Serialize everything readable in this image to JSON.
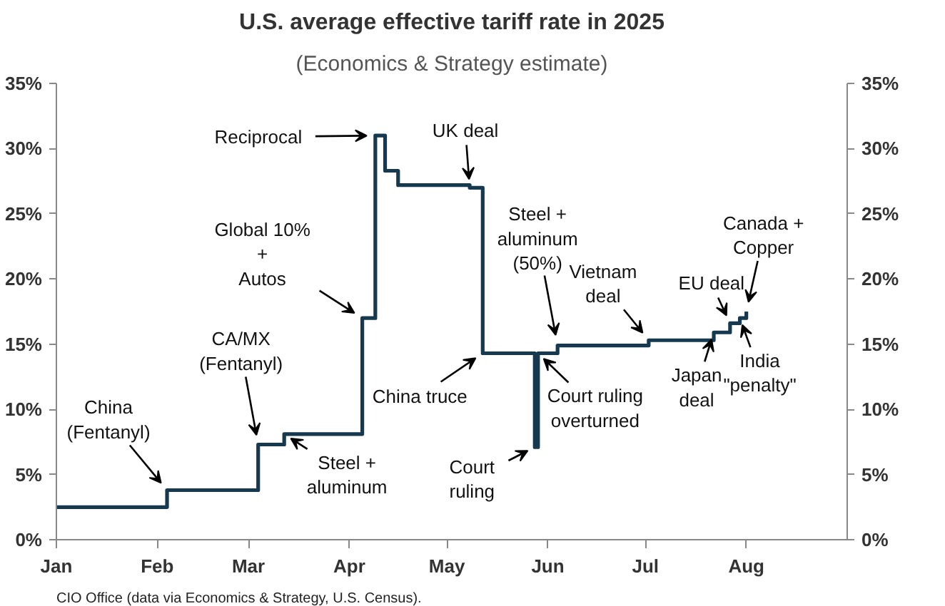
{
  "chart_data": {
    "type": "step",
    "title": "U.S. average effective tariff rate in 2025",
    "subtitle": "(Economics & Strategy estimate)",
    "x": [
      "2025-01-01",
      "2025-02-04",
      "2025-03-04",
      "2025-03-12",
      "2025-04-05",
      "2025-04-09",
      "2025-04-12",
      "2025-04-16",
      "2025-05-08",
      "2025-05-12",
      "2025-05-28",
      "2025-05-29",
      "2025-06-04",
      "2025-07-02",
      "2025-07-22",
      "2025-07-27",
      "2025-07-30",
      "2025-08-01"
    ],
    "series": [
      {
        "color": "#17394f",
        "values": [
          2.5,
          3.8,
          7.3,
          8.1,
          17.0,
          31.0,
          28.3,
          27.2,
          27.0,
          14.3,
          7.1,
          14.3,
          14.9,
          15.3,
          15.9,
          16.6,
          17.0,
          17.5
        ]
      }
    ],
    "xlim": [
      "2025-01-01",
      "2025-09-01"
    ],
    "xticks": [
      {
        "value": "2025-01-01",
        "label": "Jan"
      },
      {
        "value": "2025-02-01",
        "label": "Feb"
      },
      {
        "value": "2025-03-01",
        "label": "Mar"
      },
      {
        "value": "2025-04-01",
        "label": "Apr"
      },
      {
        "value": "2025-05-01",
        "label": "May"
      },
      {
        "value": "2025-06-01",
        "label": "Jun"
      },
      {
        "value": "2025-07-01",
        "label": "Jul"
      },
      {
        "value": "2025-08-01",
        "label": "Aug"
      }
    ],
    "ylim": [
      0,
      35
    ],
    "yticks": [
      {
        "value": 0,
        "label": "0%"
      },
      {
        "value": 5,
        "label": "5%"
      },
      {
        "value": 10,
        "label": "10%"
      },
      {
        "value": 15,
        "label": "15%"
      },
      {
        "value": 20,
        "label": "20%"
      },
      {
        "value": 25,
        "label": "25%"
      },
      {
        "value": 30,
        "label": "30%"
      },
      {
        "value": 35,
        "label": "35%"
      }
    ],
    "y2lim": [
      0,
      35
    ],
    "y2ticks": [
      {
        "value": 0,
        "label": "0%"
      },
      {
        "value": 5,
        "label": "5%"
      },
      {
        "value": 10,
        "label": "10%"
      },
      {
        "value": 15,
        "label": "15%"
      },
      {
        "value": 20,
        "label": "20%"
      },
      {
        "value": 25,
        "label": "25%"
      },
      {
        "value": 30,
        "label": "30%"
      },
      {
        "value": 35,
        "label": "35%"
      }
    ],
    "grid": false,
    "annotations": [
      {
        "text": "China\n(Fentanyl)",
        "x": "2025-02-04",
        "y": 3.8
      },
      {
        "text": "CA/MX\n(Fentanyl)",
        "x": "2025-03-04",
        "y": 7.3
      },
      {
        "text": "Steel +\naluminum",
        "x": "2025-03-12",
        "y": 8.1
      },
      {
        "text": "Global 10%\n+\nAutos",
        "x": "2025-04-05",
        "y": 17.0
      },
      {
        "text": "Reciprocal",
        "x": "2025-04-09",
        "y": 31.0
      },
      {
        "text": "UK deal",
        "x": "2025-05-08",
        "y": 27.0
      },
      {
        "text": "China truce",
        "x": "2025-05-12",
        "y": 14.3
      },
      {
        "text": "Court\nruling",
        "x": "2025-05-28",
        "y": 7.1
      },
      {
        "text": "Court ruling\noverturned",
        "x": "2025-05-29",
        "y": 14.3
      },
      {
        "text": "Steel +\naluminum\n(50%)",
        "x": "2025-06-04",
        "y": 14.9
      },
      {
        "text": "Vietnam\ndeal",
        "x": "2025-07-02",
        "y": 15.3
      },
      {
        "text": "Japan\ndeal",
        "x": "2025-07-22",
        "y": 15.9
      },
      {
        "text": "EU deal",
        "x": "2025-07-27",
        "y": 16.6
      },
      {
        "text": "India\n\"penalty\"",
        "x": "2025-07-30",
        "y": 17.0
      },
      {
        "text": "Canada +\nCopper",
        "x": "2025-08-01",
        "y": 17.5
      },
      "CIO Office (data via Economics & Strategy, U.S. Census)."
    ]
  }
}
